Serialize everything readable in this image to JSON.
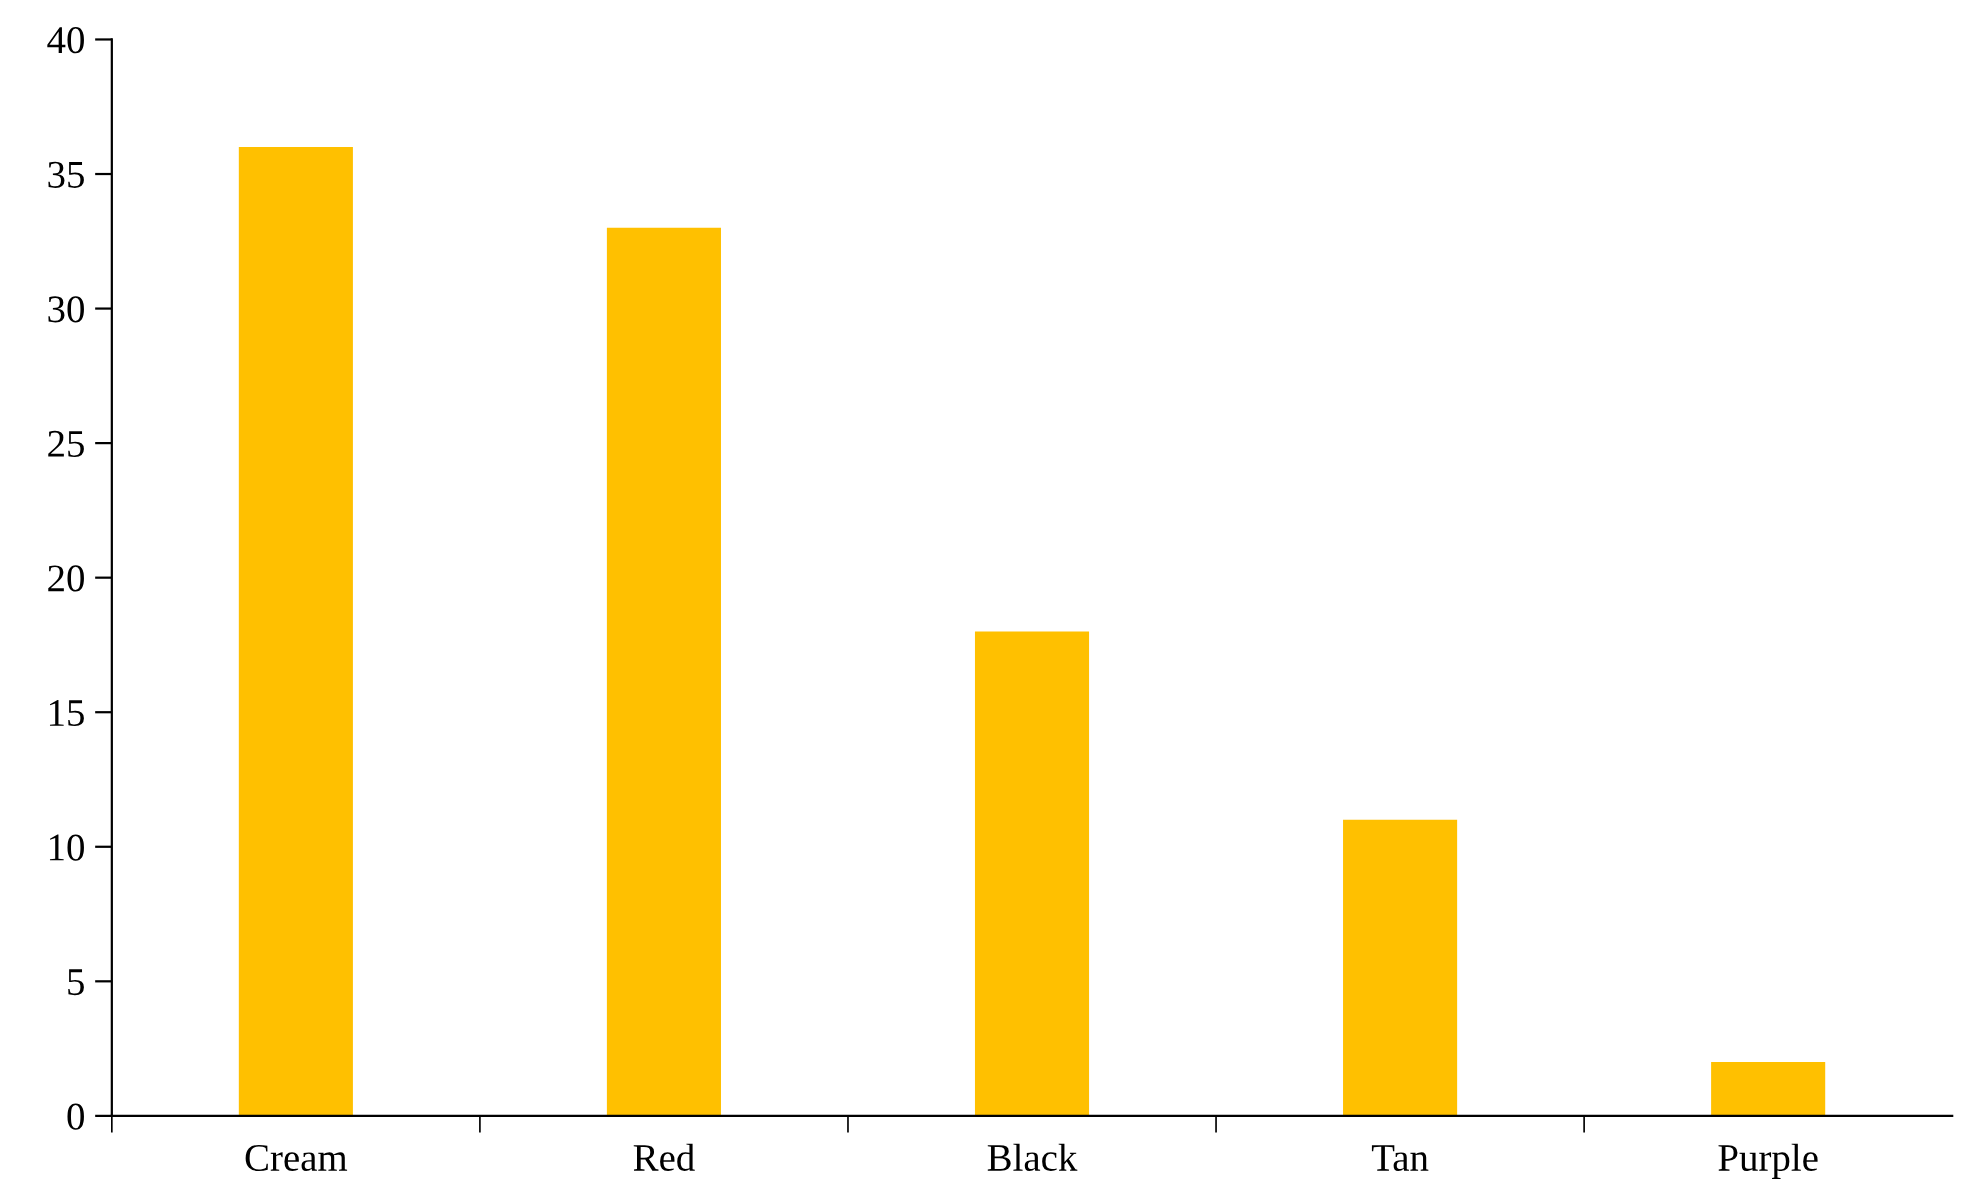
{
  "chart_data": {
    "type": "bar",
    "categories": [
      "Cream",
      "Red",
      "Black",
      "Tan",
      "Purple"
    ],
    "values": [
      36,
      33,
      18,
      11,
      2
    ],
    "color": "#ffc000",
    "ylim": [
      0,
      40
    ],
    "yticks": [
      0,
      5,
      10,
      15,
      20,
      25,
      30,
      35,
      40
    ],
    "grid": false,
    "legend": false
  }
}
